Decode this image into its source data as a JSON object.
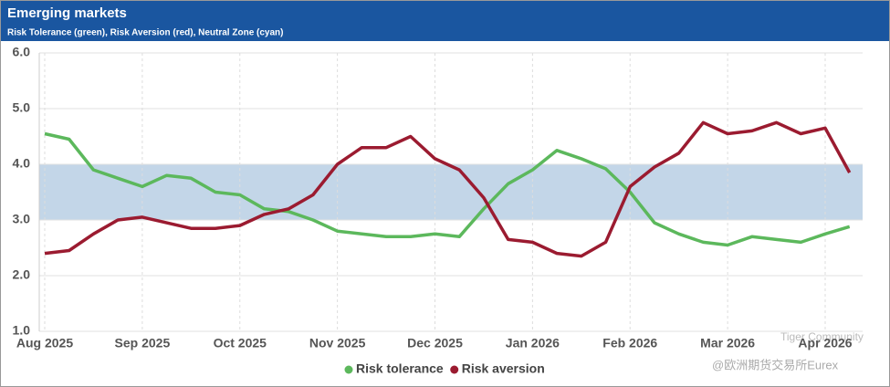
{
  "chart_data": {
    "type": "line",
    "title": "Emerging markets",
    "subtitle": "Risk Tolerance (green), Risk Aversion (red), Neutral Zone (cyan)",
    "categories": [
      "Aug 2025",
      null,
      null,
      null,
      "Sep 2025",
      null,
      null,
      null,
      "Oct 2025",
      null,
      null,
      null,
      "Nov 2025",
      null,
      null,
      null,
      "Dec 2025",
      null,
      null,
      null,
      "Jan 2026",
      null,
      null,
      null,
      "Feb 2026",
      null,
      null,
      null,
      "Mar 2026",
      null,
      null,
      null,
      "Apr 2026",
      null
    ],
    "series": [
      {
        "name": "Risk tolerance",
        "color": "#5cb85c",
        "values": [
          4.55,
          4.45,
          3.9,
          3.75,
          3.6,
          3.8,
          3.75,
          3.5,
          3.45,
          3.2,
          3.15,
          3.0,
          2.8,
          2.75,
          2.7,
          2.7,
          2.75,
          2.7,
          3.2,
          3.65,
          3.9,
          4.25,
          4.1,
          3.92,
          3.5,
          2.95,
          2.75,
          2.6,
          2.55,
          2.7,
          2.65,
          2.6,
          2.75,
          2.88
        ]
      },
      {
        "name": "Risk aversion",
        "color": "#9b1b30",
        "values": [
          2.4,
          2.45,
          2.75,
          3.0,
          3.05,
          2.95,
          2.85,
          2.85,
          2.9,
          3.1,
          3.2,
          3.45,
          4.0,
          4.3,
          4.3,
          4.5,
          4.1,
          3.9,
          3.4,
          2.65,
          2.6,
          2.4,
          2.35,
          2.6,
          3.6,
          3.95,
          4.2,
          4.75,
          4.55,
          4.6,
          4.75,
          4.55,
          4.65,
          3.85
        ]
      }
    ],
    "neutral_zone": [
      3,
      4
    ],
    "neutral_zone_color": "#c3d6e8",
    "ylim": [
      1,
      6
    ],
    "yticks": [
      {
        "value": 1,
        "label": "1.0"
      },
      {
        "value": 2,
        "label": "2.0"
      },
      {
        "value": 3,
        "label": "3.0"
      },
      {
        "value": 4,
        "label": "4.0"
      },
      {
        "value": 5,
        "label": "5.0"
      },
      {
        "value": 6,
        "label": "6.0"
      }
    ],
    "grid": true,
    "legend": "bottom",
    "watermark": [
      "Tiger Community",
      "@欧洲期货交易所Eurex"
    ]
  }
}
